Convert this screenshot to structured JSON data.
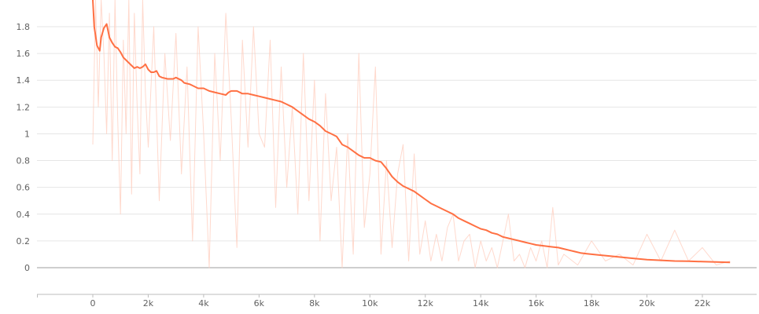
{
  "chart_data": {
    "type": "line",
    "title": "",
    "xlabel": "",
    "ylabel": "",
    "xlim": [
      -2000,
      24000
    ],
    "ylim": [
      -0.2,
      2.0
    ],
    "grid": "horizontal",
    "x_ticks": [
      {
        "value": 0,
        "label": "0"
      },
      {
        "value": 2000,
        "label": "2k"
      },
      {
        "value": 4000,
        "label": "4k"
      },
      {
        "value": 6000,
        "label": "6k"
      },
      {
        "value": 8000,
        "label": "8k"
      },
      {
        "value": 10000,
        "label": "10k"
      },
      {
        "value": 12000,
        "label": "12k"
      },
      {
        "value": 14000,
        "label": "14k"
      },
      {
        "value": 16000,
        "label": "16k"
      },
      {
        "value": 18000,
        "label": "18k"
      },
      {
        "value": 20000,
        "label": "20k"
      },
      {
        "value": 22000,
        "label": "22k"
      }
    ],
    "y_ticks": [
      {
        "value": 0,
        "label": "0"
      },
      {
        "value": 0.2,
        "label": "0.2"
      },
      {
        "value": 0.4,
        "label": "0.4"
      },
      {
        "value": 0.6,
        "label": "0.6"
      },
      {
        "value": 0.8,
        "label": "0.8"
      },
      {
        "value": 1.0,
        "label": "1"
      },
      {
        "value": 1.2,
        "label": "1.2"
      },
      {
        "value": 1.4,
        "label": "1.4"
      },
      {
        "value": 1.6,
        "label": "1.6"
      },
      {
        "value": 1.8,
        "label": "1.8"
      }
    ],
    "colors": {
      "smoothed": "#ff7043",
      "raw": "#ffccbc"
    },
    "series": [
      {
        "role": "smoothed",
        "x": [
          0,
          50,
          150,
          250,
          300,
          400,
          500,
          600,
          700,
          800,
          900,
          1000,
          1100,
          1200,
          1300,
          1400,
          1500,
          1600,
          1700,
          1800,
          1900,
          2000,
          2100,
          2200,
          2300,
          2400,
          2500,
          2700,
          2900,
          3000,
          3200,
          3300,
          3500,
          3600,
          3800,
          4000,
          4200,
          4400,
          4600,
          4800,
          4900,
          5000,
          5200,
          5400,
          5600,
          5800,
          6000,
          6200,
          6400,
          6600,
          6800,
          7000,
          7200,
          7400,
          7600,
          7800,
          8000,
          8200,
          8400,
          8600,
          8800,
          9000,
          9200,
          9400,
          9600,
          9800,
          10000,
          10200,
          10400,
          10600,
          10800,
          11000,
          11200,
          11400,
          11600,
          11800,
          12000,
          12200,
          12400,
          12600,
          12800,
          13000,
          13200,
          13400,
          13600,
          13800,
          14000,
          14200,
          14400,
          14600,
          14800,
          15000,
          15200,
          15400,
          15600,
          15800,
          16000,
          16200,
          16400,
          16600,
          16800,
          17000,
          17200,
          17400,
          17600,
          17800,
          18000,
          18500,
          19000,
          19500,
          20000,
          20500,
          21000,
          21500,
          22000,
          22500,
          23000
        ],
        "y": [
          2.0,
          1.8,
          1.66,
          1.62,
          1.72,
          1.79,
          1.82,
          1.72,
          1.68,
          1.65,
          1.64,
          1.61,
          1.57,
          1.55,
          1.53,
          1.51,
          1.49,
          1.5,
          1.49,
          1.5,
          1.52,
          1.48,
          1.46,
          1.46,
          1.47,
          1.43,
          1.42,
          1.41,
          1.41,
          1.42,
          1.4,
          1.38,
          1.37,
          1.36,
          1.34,
          1.34,
          1.32,
          1.31,
          1.3,
          1.29,
          1.31,
          1.32,
          1.32,
          1.3,
          1.3,
          1.29,
          1.28,
          1.27,
          1.26,
          1.25,
          1.24,
          1.22,
          1.2,
          1.17,
          1.14,
          1.11,
          1.09,
          1.06,
          1.02,
          1.0,
          0.98,
          0.92,
          0.9,
          0.87,
          0.84,
          0.82,
          0.82,
          0.8,
          0.79,
          0.74,
          0.68,
          0.64,
          0.61,
          0.59,
          0.57,
          0.54,
          0.51,
          0.48,
          0.46,
          0.44,
          0.42,
          0.4,
          0.37,
          0.35,
          0.33,
          0.31,
          0.29,
          0.28,
          0.26,
          0.25,
          0.23,
          0.22,
          0.21,
          0.2,
          0.19,
          0.18,
          0.17,
          0.165,
          0.16,
          0.155,
          0.15,
          0.14,
          0.13,
          0.12,
          0.11,
          0.105,
          0.1,
          0.09,
          0.08,
          0.07,
          0.06,
          0.055,
          0.05,
          0.048,
          0.045,
          0.043,
          0.04
        ]
      },
      {
        "role": "raw",
        "x": [
          0,
          100,
          200,
          300,
          400,
          500,
          600,
          700,
          800,
          900,
          1000,
          1100,
          1200,
          1300,
          1400,
          1500,
          1600,
          1700,
          1800,
          1900,
          2000,
          2200,
          2400,
          2600,
          2800,
          3000,
          3200,
          3400,
          3600,
          3800,
          4000,
          4200,
          4400,
          4600,
          4800,
          5000,
          5200,
          5400,
          5600,
          5800,
          6000,
          6200,
          6400,
          6600,
          6800,
          7000,
          7200,
          7400,
          7600,
          7800,
          8000,
          8200,
          8400,
          8600,
          8800,
          9000,
          9200,
          9400,
          9600,
          9800,
          10000,
          10200,
          10400,
          10600,
          10800,
          11000,
          11200,
          11400,
          11600,
          11800,
          12000,
          12200,
          12400,
          12600,
          12800,
          13000,
          13200,
          13400,
          13600,
          13800,
          14000,
          14200,
          14400,
          14600,
          14800,
          15000,
          15200,
          15400,
          15600,
          15800,
          16000,
          16200,
          16400,
          16600,
          16800,
          17000,
          17500,
          18000,
          18500,
          19000,
          19500,
          20000,
          20500,
          21000,
          21500,
          22000,
          22500,
          23000
        ],
        "y": [
          0.92,
          2.0,
          1.2,
          2.0,
          1.6,
          1.0,
          1.9,
          0.8,
          2.0,
          1.1,
          0.4,
          1.7,
          1.0,
          2.0,
          0.55,
          1.9,
          1.2,
          0.7,
          2.0,
          1.3,
          0.9,
          1.8,
          0.5,
          1.6,
          0.95,
          1.75,
          0.7,
          1.5,
          0.2,
          1.8,
          1.0,
          0.0,
          1.6,
          0.8,
          1.9,
          1.1,
          0.15,
          1.7,
          0.9,
          1.8,
          1.0,
          0.9,
          1.7,
          0.45,
          1.5,
          0.6,
          1.2,
          0.4,
          1.6,
          0.5,
          1.4,
          0.2,
          1.3,
          0.5,
          0.9,
          0.0,
          1.0,
          0.1,
          1.6,
          0.3,
          0.7,
          1.5,
          0.1,
          0.8,
          0.15,
          0.7,
          0.92,
          0.05,
          0.85,
          0.1,
          0.35,
          0.05,
          0.25,
          0.05,
          0.3,
          0.4,
          0.05,
          0.2,
          0.25,
          0.0,
          0.2,
          0.05,
          0.15,
          0.0,
          0.2,
          0.4,
          0.05,
          0.1,
          0.0,
          0.15,
          0.05,
          0.2,
          0.0,
          0.45,
          0.02,
          0.1,
          0.02,
          0.2,
          0.05,
          0.1,
          0.02,
          0.25,
          0.05,
          0.28,
          0.05,
          0.15,
          0.02,
          0.05
        ]
      }
    ]
  }
}
